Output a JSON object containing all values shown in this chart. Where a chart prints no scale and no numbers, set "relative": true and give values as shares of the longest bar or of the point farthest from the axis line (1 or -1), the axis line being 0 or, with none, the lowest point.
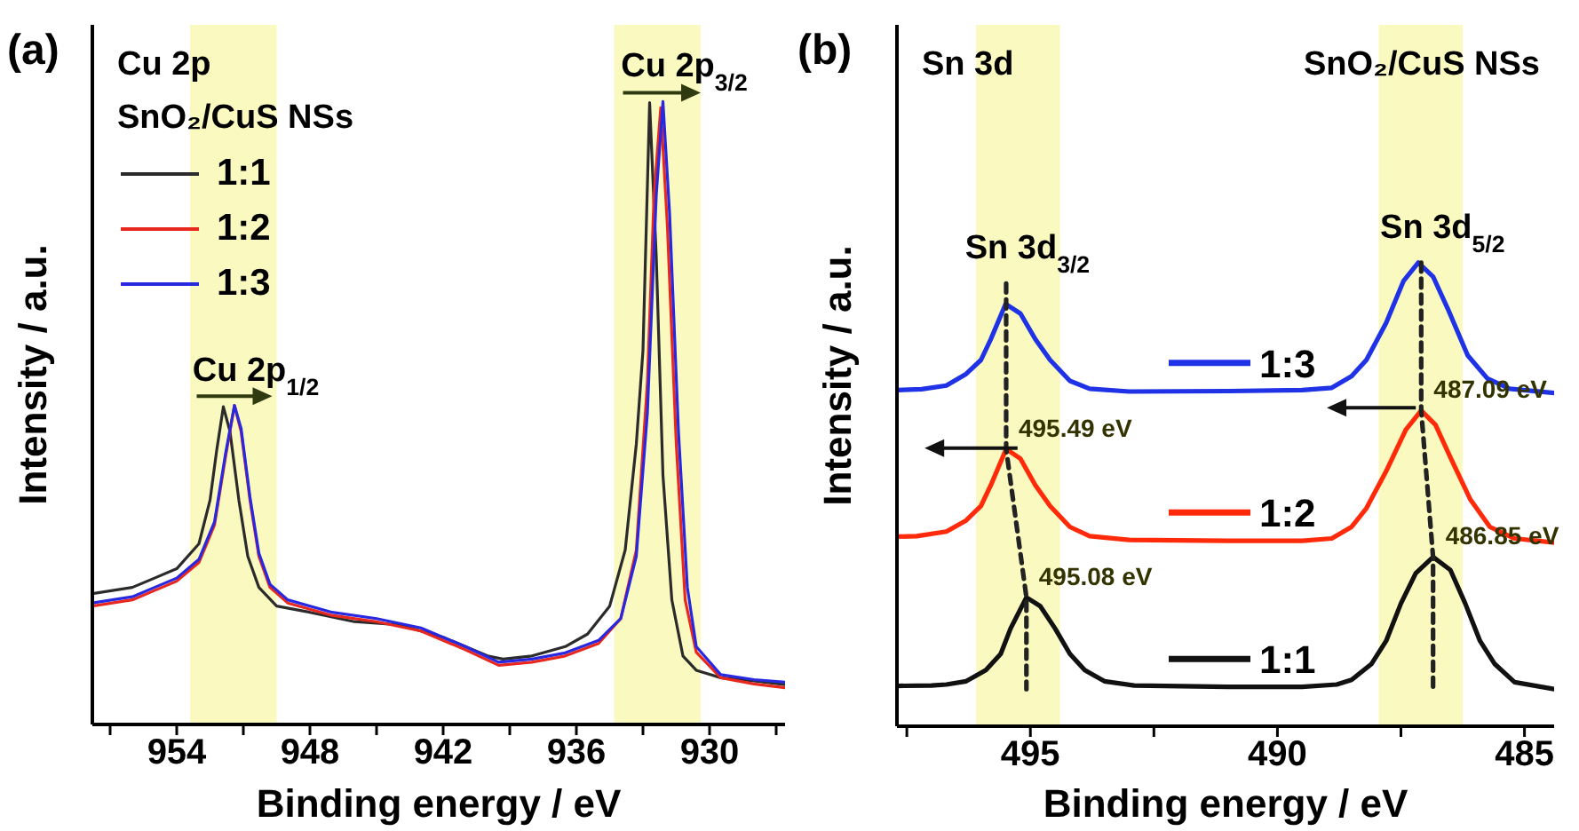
{
  "chart_data": [
    {
      "type": "line",
      "title": "(a)",
      "xlabel": "Binding energy / eV",
      "ylabel": "Intensity / a.u.",
      "relative": true,
      "legend": "top left",
      "legend_title": "SnO₂/CuS NSs",
      "xlim": [
        957.8,
        926.6
      ],
      "xticks": [
        {
          "value": 957,
          "label": null
        },
        954,
        {
          "value": 951,
          "label": null
        },
        948,
        {
          "value": 945,
          "label": null
        },
        942,
        {
          "value": 939,
          "label": null
        },
        936,
        {
          "value": 933,
          "label": null
        },
        930,
        {
          "value": 927,
          "label": null
        }
      ],
      "bands": [
        {
          "axis": "x",
          "from": 953.4,
          "to": 949.5,
          "color": "#fafac0"
        },
        {
          "axis": "x",
          "from": 934.3,
          "to": 930.4,
          "color": "#fafac0"
        }
      ],
      "annotations": [
        "Cu 2p",
        {
          "text": "Cu 2p$_{1/2}$",
          "x": 951.4,
          "y": 0.512
        },
        {
          "text": "Cu 2p$_{3/2}$",
          "x": 932.1,
          "y": 1.0
        }
      ],
      "series": [
        {
          "name": "1:1",
          "color": "#2b2b2b",
          "x": [
            957.8,
            956,
            955,
            954,
            953,
            952.5,
            952.2,
            951.9,
            951.6,
            951.2,
            950.8,
            950.3,
            949.5,
            948,
            946,
            944,
            942,
            940,
            939.3,
            938,
            936.5,
            935.5,
            934.5,
            933.8,
            933.3,
            933,
            932.7,
            932.4,
            932.1,
            931.7,
            931.2,
            930.6,
            929.5,
            928,
            926.6
          ],
          "values": [
            0.21,
            0.22,
            0.235,
            0.25,
            0.29,
            0.36,
            0.44,
            0.51,
            0.47,
            0.36,
            0.27,
            0.22,
            0.19,
            0.18,
            0.165,
            0.16,
            0.14,
            0.11,
            0.105,
            0.11,
            0.125,
            0.145,
            0.19,
            0.28,
            0.45,
            0.6,
            0.998,
            0.75,
            0.4,
            0.2,
            0.11,
            0.087,
            0.075,
            0.07,
            0.064
          ]
        },
        {
          "name": "1:2",
          "color": "#e8281e",
          "x": [
            957.8,
            956,
            955,
            954,
            953,
            952.3,
            951.8,
            951.4,
            951.1,
            950.7,
            950.3,
            949.8,
            949,
            947,
            945,
            943,
            941,
            939.5,
            938,
            936.5,
            935,
            934,
            933.3,
            932.8,
            932.5,
            932.2,
            931.9,
            931.5,
            931.1,
            930.6,
            929.5,
            928,
            926.6
          ],
          "values": [
            0.19,
            0.2,
            0.215,
            0.23,
            0.26,
            0.32,
            0.43,
            0.512,
            0.47,
            0.36,
            0.27,
            0.22,
            0.195,
            0.175,
            0.165,
            0.15,
            0.12,
            0.095,
            0.1,
            0.11,
            0.13,
            0.17,
            0.28,
            0.55,
            0.85,
            0.99,
            0.8,
            0.45,
            0.2,
            0.116,
            0.075,
            0.065,
            0.059
          ]
        },
        {
          "name": "1:3",
          "color": "#2828e0",
          "x": [
            957.8,
            956,
            955,
            954,
            953,
            952.3,
            951.8,
            951.4,
            951.1,
            950.7,
            950.3,
            949.8,
            949,
            947,
            945,
            943,
            941,
            939.5,
            938,
            936.5,
            935,
            934,
            933.3,
            932.8,
            932.4,
            932.1,
            931.8,
            931.4,
            931,
            930.6,
            929.5,
            928,
            926.6
          ],
          "values": [
            0.195,
            0.205,
            0.22,
            0.235,
            0.265,
            0.325,
            0.435,
            0.512,
            0.475,
            0.365,
            0.275,
            0.225,
            0.2,
            0.18,
            0.17,
            0.155,
            0.125,
            0.1,
            0.105,
            0.115,
            0.135,
            0.17,
            0.27,
            0.5,
            0.85,
            1.0,
            0.82,
            0.47,
            0.22,
            0.125,
            0.08,
            0.072,
            0.068
          ]
        }
      ]
    },
    {
      "type": "line",
      "title": "(b)",
      "xlabel": "Binding energy / eV",
      "ylabel": "Intensity / a.u.",
      "relative": true,
      "legend": "center",
      "xlim": [
        497.7,
        484.4
      ],
      "xticks": [
        {
          "value": 497.5,
          "label": null
        },
        495,
        {
          "value": 492.5,
          "label": null
        },
        490,
        {
          "value": 487.5,
          "label": null
        },
        485
      ],
      "bands": [
        {
          "axis": "x",
          "from": 496.1,
          "to": 494.4,
          "color": "#fafac0"
        },
        {
          "axis": "x",
          "from": 487.95,
          "to": 486.25,
          "color": "#fafac0"
        }
      ],
      "annotations": [
        "Sn 3d",
        "SnO₂/CuS NSs",
        {
          "text": "Sn 3d$_{3/2}$",
          "x": 495.49,
          "y": 0.955
        },
        {
          "text": "Sn 3d$_{5/2}$",
          "x": 487.09,
          "y": 1.0
        },
        {
          "text": "495.49 eV",
          "x": 495.49,
          "y": 0.598
        },
        {
          "text": "487.09 eV",
          "x": 487.09,
          "y": 0.681
        },
        {
          "text": "495.08 eV",
          "x": 495.08,
          "y": 0.278
        },
        {
          "text": "486.85 eV",
          "x": 486.85,
          "y": 0.365
        }
      ],
      "series": [
        {
          "name": "1:1",
          "color": "#111111",
          "x": [
            497.7,
            497,
            496.7,
            496.3,
            495.9,
            495.6,
            495.4,
            495.08,
            494.8,
            494.5,
            494.2,
            493.9,
            493.5,
            492.9,
            491,
            489.5,
            488.8,
            488.5,
            488.1,
            487.8,
            487.5,
            487.2,
            486.85,
            486.5,
            486.2,
            485.9,
            485.6,
            485.2,
            484.4
          ],
          "values": [
            0.087,
            0.088,
            0.09,
            0.097,
            0.121,
            0.156,
            0.211,
            0.278,
            0.259,
            0.211,
            0.156,
            0.121,
            0.097,
            0.088,
            0.085,
            0.085,
            0.09,
            0.1,
            0.134,
            0.184,
            0.265,
            0.33,
            0.365,
            0.337,
            0.265,
            0.184,
            0.134,
            0.095,
            0.08
          ]
        },
        {
          "name": "1:2",
          "color": "#ff2a0a",
          "x": [
            497.7,
            497.3,
            496.7,
            496.3,
            496,
            495.8,
            495.49,
            495.2,
            494.9,
            494.6,
            494.2,
            493.8,
            493,
            491,
            489.5,
            488.9,
            488.5,
            488.2,
            487.8,
            487.4,
            487.09,
            486.8,
            486.5,
            486.1,
            485.7,
            485.2,
            484.4
          ],
          "values": [
            0.409,
            0.41,
            0.42,
            0.444,
            0.475,
            0.52,
            0.598,
            0.577,
            0.52,
            0.475,
            0.43,
            0.41,
            0.402,
            0.4,
            0.4,
            0.405,
            0.43,
            0.47,
            0.55,
            0.64,
            0.681,
            0.65,
            0.58,
            0.49,
            0.43,
            0.405,
            0.396
          ]
        },
        {
          "name": "1:3",
          "color": "#1f32e6",
          "x": [
            497.7,
            497.2,
            496.7,
            496.3,
            496,
            495.8,
            495.5,
            495.2,
            494.9,
            494.6,
            494.2,
            493.8,
            493,
            491,
            489.5,
            488.9,
            488.5,
            488.2,
            487.8,
            487.45,
            487.15,
            486.85,
            486.55,
            486.15,
            485.75,
            485.3,
            484.4
          ],
          "values": [
            0.725,
            0.727,
            0.735,
            0.76,
            0.79,
            0.835,
            0.911,
            0.89,
            0.835,
            0.79,
            0.745,
            0.728,
            0.722,
            0.723,
            0.725,
            0.73,
            0.755,
            0.79,
            0.87,
            0.96,
            1.0,
            0.97,
            0.9,
            0.8,
            0.75,
            0.728,
            0.719
          ]
        },
        {
          "type": "line",
          "line_style": "dashed",
          "color": "#222222",
          "x": [
            495.49,
            495.49,
            495.08,
            495.08
          ],
          "values": [
            0.955,
            0.598,
            0.278,
            0.08
          ]
        },
        {
          "type": "line",
          "line_style": "dashed",
          "color": "#222222",
          "x": [
            487.09,
            487.09,
            486.85,
            486.85
          ],
          "values": [
            1.0,
            0.681,
            0.365,
            0.08
          ]
        }
      ]
    }
  ]
}
